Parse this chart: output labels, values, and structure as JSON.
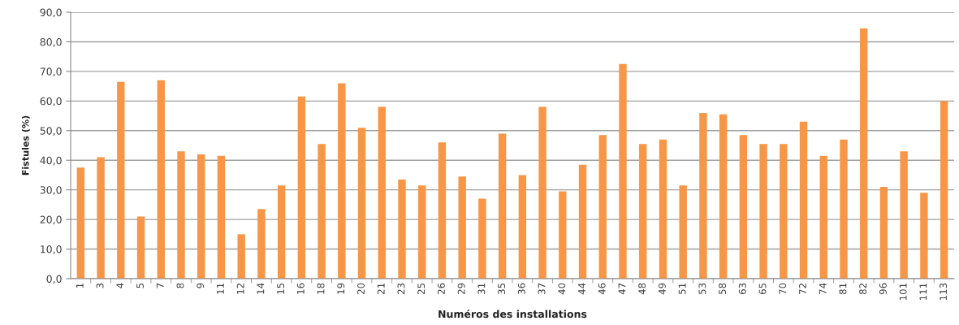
{
  "chart_data": {
    "type": "bar",
    "xlabel": "Numéros des installations",
    "ylabel": "Fistules (%)",
    "categories": [
      "1",
      "3",
      "4",
      "5",
      "7",
      "8",
      "9",
      "11",
      "12",
      "14",
      "15",
      "16",
      "18",
      "19",
      "20",
      "21",
      "23",
      "25",
      "26",
      "29",
      "31",
      "35",
      "36",
      "37",
      "40",
      "44",
      "46",
      "47",
      "48",
      "49",
      "51",
      "53",
      "58",
      "63",
      "65",
      "70",
      "72",
      "74",
      "81",
      "82",
      "96",
      "101",
      "111",
      "113"
    ],
    "values": [
      37.5,
      41,
      66.5,
      21,
      67,
      43,
      42,
      41.5,
      15,
      23.5,
      31.5,
      61.5,
      45.5,
      66,
      51,
      58,
      33.5,
      31.5,
      46,
      34.5,
      27,
      49,
      35,
      58,
      29.5,
      38.5,
      48.5,
      72.5,
      45.5,
      47,
      31.5,
      56,
      55.5,
      48.5,
      45.5,
      45.5,
      53,
      41.5,
      47,
      84.5,
      31,
      43,
      29,
      60
    ],
    "color": "#f79646",
    "ylim": [
      0,
      90
    ],
    "yticks": [
      {
        "value": 0,
        "label": "0,0"
      },
      {
        "value": 10,
        "label": "10,0"
      },
      {
        "value": 20,
        "label": "20,0"
      },
      {
        "value": 30,
        "label": "30,0"
      },
      {
        "value": 40,
        "label": "40,0"
      },
      {
        "value": 50,
        "label": "50,0"
      },
      {
        "value": 60,
        "label": "60,0"
      },
      {
        "value": 70,
        "label": "70,0"
      },
      {
        "value": 80,
        "label": "80,0"
      },
      {
        "value": 90,
        "label": "90,0"
      }
    ],
    "grid": "y"
  }
}
